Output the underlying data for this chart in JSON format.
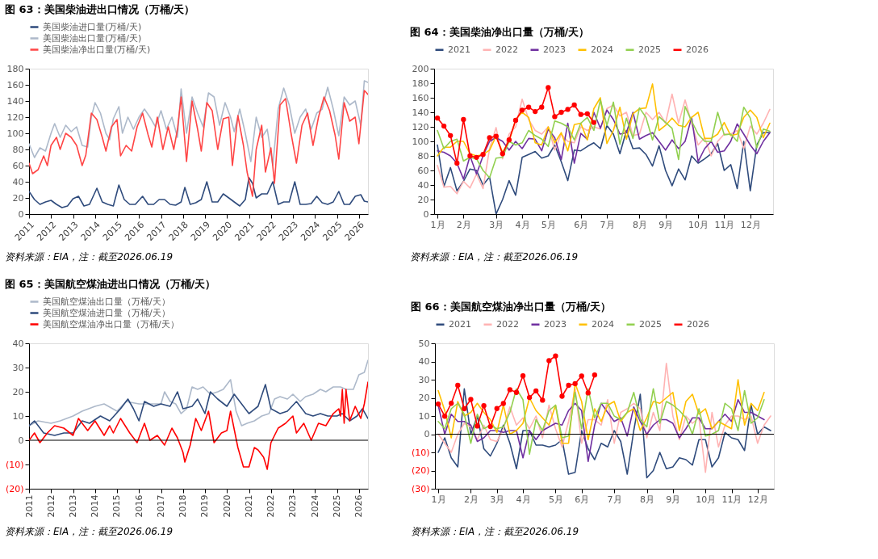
{
  "chart_data": [
    {
      "type": "line",
      "title": "图 63：美国柴油进出口情况（万桶/天）",
      "annotations": [
        "资料来源：EIA，注：截至2026.06.19"
      ],
      "legend": "top left",
      "xlim": [
        "2011-01",
        "2026-06"
      ],
      "xticks": [
        "2011",
        "2012",
        "2013",
        "2014",
        "2015",
        "2016",
        "2017",
        "2018",
        "2019",
        "2020",
        "2021",
        "2022",
        "2023",
        "2024",
        "2025",
        "2026"
      ],
      "ylim": [
        0,
        180
      ],
      "yticks": [
        0,
        20,
        40,
        60,
        80,
        100,
        120,
        140,
        160,
        180
      ],
      "series": [
        {
          "name": "美国柴油进口量(万桶/天)",
          "color": "#2f4b7c",
          "x": [
            "2011-01",
            "2011-04",
            "2011-07",
            "2011-10",
            "2012-01",
            "2012-04",
            "2012-07",
            "2012-10",
            "2013-01",
            "2013-04",
            "2013-07",
            "2013-10",
            "2014-02",
            "2014-05",
            "2014-08",
            "2014-11",
            "2015-02",
            "2015-05",
            "2015-08",
            "2015-11",
            "2016-03",
            "2016-06",
            "2016-09",
            "2016-12",
            "2017-03",
            "2017-06",
            "2017-09",
            "2017-12",
            "2018-02",
            "2018-05",
            "2018-08",
            "2018-11",
            "2019-02",
            "2019-05",
            "2019-08",
            "2019-11",
            "2020-02",
            "2020-05",
            "2020-08",
            "2020-11",
            "2021-01",
            "2021-03",
            "2021-05",
            "2021-08",
            "2021-11",
            "2022-02",
            "2022-05",
            "2022-08",
            "2022-11",
            "2023-02",
            "2023-05",
            "2023-08",
            "2023-11",
            "2024-02",
            "2024-05",
            "2024-08",
            "2024-11",
            "2025-02",
            "2025-05",
            "2025-08",
            "2025-11",
            "2026-02",
            "2026-04",
            "2026-06"
          ],
          "values": [
            28,
            18,
            12,
            15,
            17,
            12,
            8,
            10,
            19,
            22,
            10,
            12,
            32,
            15,
            12,
            10,
            36,
            18,
            12,
            12,
            22,
            12,
            12,
            18,
            18,
            12,
            11,
            15,
            33,
            12,
            14,
            18,
            40,
            15,
            15,
            25,
            20,
            15,
            10,
            18,
            45,
            38,
            20,
            25,
            25,
            40,
            12,
            15,
            15,
            40,
            12,
            12,
            13,
            22,
            14,
            12,
            15,
            28,
            12,
            12,
            22,
            24,
            16,
            15
          ]
        },
        {
          "name": "美国柴油出口量(万桶/天)",
          "color": "#adb9ca",
          "x": [
            "2011-01",
            "2011-04",
            "2011-07",
            "2011-10",
            "2012-01",
            "2012-03",
            "2012-06",
            "2012-09",
            "2012-12",
            "2013-03",
            "2013-06",
            "2013-09",
            "2013-11",
            "2014-01",
            "2014-04",
            "2014-07",
            "2014-09",
            "2014-11",
            "2015-02",
            "2015-04",
            "2015-07",
            "2015-10",
            "2016-01",
            "2016-04",
            "2016-07",
            "2016-10",
            "2017-01",
            "2017-04",
            "2017-07",
            "2017-10",
            "2017-12",
            "2018-03",
            "2018-06",
            "2018-09",
            "2018-12",
            "2019-03",
            "2019-06",
            "2019-09",
            "2019-12",
            "2020-03",
            "2020-05",
            "2020-08",
            "2020-11",
            "2021-02",
            "2021-05",
            "2021-08",
            "2021-11",
            "2022-02",
            "2022-05",
            "2022-08",
            "2022-11",
            "2023-02",
            "2023-05",
            "2023-08",
            "2023-11",
            "2024-02",
            "2024-05",
            "2024-08",
            "2024-11",
            "2025-02",
            "2025-05",
            "2025-08",
            "2025-11",
            "2026-02",
            "2026-04",
            "2026-06"
          ],
          "values": [
            87,
            70,
            82,
            78,
            100,
            112,
            95,
            110,
            102,
            108,
            85,
            83,
            120,
            138,
            125,
            100,
            92,
            118,
            133,
            100,
            120,
            105,
            120,
            130,
            120,
            108,
            128,
            105,
            120,
            95,
            155,
            100,
            145,
            125,
            108,
            150,
            145,
            110,
            138,
            120,
            102,
            130,
            100,
            65,
            120,
            95,
            105,
            60,
            130,
            156,
            135,
            100,
            120,
            130,
            105,
            125,
            130,
            157,
            130,
            97,
            145,
            135,
            140,
            110,
            165,
            163
          ]
        },
        {
          "name": "美国柴油净出口量(万桶/天)",
          "color": "#ff4545",
          "x": [
            "2011-01",
            "2011-03",
            "2011-06",
            "2011-09",
            "2011-11",
            "2012-01",
            "2012-04",
            "2012-06",
            "2012-09",
            "2012-12",
            "2013-03",
            "2013-06",
            "2013-08",
            "2013-11",
            "2014-02",
            "2014-05",
            "2014-07",
            "2014-10",
            "2015-01",
            "2015-03",
            "2015-06",
            "2015-09",
            "2015-12",
            "2016-03",
            "2016-06",
            "2016-08",
            "2016-11",
            "2017-02",
            "2017-05",
            "2017-08",
            "2017-10",
            "2017-12",
            "2018-03",
            "2018-06",
            "2018-09",
            "2018-11",
            "2019-02",
            "2019-05",
            "2019-08",
            "2019-11",
            "2020-02",
            "2020-04",
            "2020-07",
            "2020-10",
            "2020-12",
            "2021-03",
            "2021-05",
            "2021-08",
            "2021-10",
            "2022-01",
            "2022-03",
            "2022-06",
            "2022-09",
            "2022-12",
            "2023-03",
            "2023-06",
            "2023-09",
            "2023-12",
            "2024-03",
            "2024-06",
            "2024-09",
            "2024-12",
            "2025-02",
            "2025-05",
            "2025-08",
            "2025-11",
            "2026-01",
            "2026-04",
            "2026-06"
          ],
          "values": [
            63,
            50,
            55,
            72,
            60,
            85,
            95,
            80,
            100,
            95,
            85,
            60,
            73,
            125,
            117,
            95,
            78,
            108,
            117,
            72,
            85,
            78,
            108,
            125,
            98,
            83,
            120,
            80,
            108,
            80,
            105,
            145,
            65,
            140,
            105,
            78,
            138,
            128,
            80,
            118,
            120,
            60,
            122,
            85,
            52,
            22,
            80,
            110,
            52,
            82,
            38,
            135,
            143,
            100,
            63,
            110,
            125,
            85,
            120,
            145,
            128,
            98,
            68,
            138,
            115,
            120,
            87,
            153,
            148
          ]
        }
      ]
    },
    {
      "type": "line",
      "title": "图 64：美国柴油净出口量（万桶/天）",
      "annotations": [
        "资料来源：EIA，注：截至2026.06.19"
      ],
      "legend": "top",
      "categories": [
        "1月",
        null,
        null,
        null,
        "2月",
        null,
        null,
        null,
        null,
        "3月",
        null,
        null,
        null,
        "4月",
        null,
        null,
        null,
        "5月",
        null,
        null,
        null,
        null,
        "6月",
        null,
        null,
        null,
        "7月",
        null,
        null,
        null,
        null,
        "8月",
        null,
        null,
        null,
        "9月",
        null,
        null,
        null,
        null,
        "10月",
        null,
        null,
        null,
        "11月",
        null,
        null,
        null,
        "12月",
        null,
        null,
        null
      ],
      "ylim": [
        0,
        200
      ],
      "yticks": [
        0,
        20,
        40,
        60,
        80,
        100,
        120,
        140,
        160,
        180,
        200
      ],
      "series": [
        {
          "name": "2021",
          "color": "#2f4b7c",
          "values": [
            95,
            38,
            64,
            32,
            45,
            62,
            60,
            40,
            51,
            0,
            20,
            46,
            26,
            78,
            82,
            86,
            77,
            80,
            95,
            72,
            46,
            88,
            87,
            93,
            98,
            90,
            122,
            110,
            83,
            115,
            90,
            91,
            82,
            66,
            94,
            60,
            39,
            62,
            47,
            80,
            70,
            76,
            83,
            97,
            60,
            68,
            35,
            100,
            32,
            95,
            112,
            112
          ]
        },
        {
          "name": "2022",
          "color": "#ffb3b3",
          "values": [
            67,
            37,
            38,
            28,
            45,
            36,
            55,
            35,
            90,
            119,
            76,
            110,
            120,
            158,
            130,
            115,
            110,
            120,
            88,
            110,
            100,
            98,
            120,
            115,
            120,
            117,
            145,
            150,
            135,
            140,
            108,
            110,
            140,
            130,
            140,
            125,
            165,
            125,
            157,
            125,
            95,
            105,
            80,
            100,
            110,
            110,
            115,
            90,
            121,
            110,
            125,
            144
          ]
        },
        {
          "name": "2023",
          "color": "#7030a0",
          "values": [
            87,
            85,
            80,
            70,
            48,
            80,
            55,
            80,
            100,
            105,
            100,
            88,
            100,
            90,
            104,
            103,
            87,
            117,
            105,
            75,
            125,
            70,
            111,
            103,
            140,
            118,
            143,
            130,
            110,
            112,
            140,
            103,
            108,
            112,
            100,
            88,
            102,
            90,
            100,
            133,
            72,
            90,
            100,
            85,
            87,
            100,
            124,
            110,
            95,
            83,
            100,
            112
          ]
        },
        {
          "name": "2024",
          "color": "#ffc000",
          "values": [
            80,
            92,
            92,
            100,
            100,
            83,
            80,
            82,
            88,
            107,
            85,
            100,
            130,
            140,
            133,
            98,
            95,
            120,
            98,
            112,
            87,
            123,
            125,
            102,
            145,
            160,
            97,
            115,
            147,
            103,
            138,
            145,
            146,
            179,
            115,
            122,
            132,
            122,
            120,
            133,
            140,
            104,
            104,
            110,
            126,
            108,
            110,
            133,
            143,
            133,
            105,
            125
          ]
        },
        {
          "name": "2025",
          "color": "#92d050",
          "values": [
            115,
            90,
            100,
            103,
            73,
            78,
            76,
            60,
            50,
            77,
            78,
            100,
            95,
            98,
            115,
            108,
            103,
            93,
            128,
            125,
            120,
            102,
            125,
            133,
            115,
            157,
            122,
            154,
            96,
            132,
            104,
            146,
            133,
            102,
            134,
            126,
            118,
            75,
            148,
            128,
            110,
            100,
            100,
            140,
            109,
            110,
            100,
            147,
            132,
            91,
            117,
            114
          ]
        },
        {
          "name": "2026",
          "color": "#ff0000",
          "marker": "circle",
          "values": [
            132,
            121,
            108,
            70,
            130,
            80,
            78,
            82,
            105,
            107,
            83,
            102,
            129,
            143,
            147,
            141,
            147,
            174,
            134,
            140,
            144,
            150,
            137,
            138,
            126,
            null,
            null,
            null,
            null,
            null,
            null,
            null,
            null,
            null,
            null,
            null,
            null,
            null,
            null,
            null,
            null,
            null,
            null,
            null,
            null,
            null,
            null,
            null,
            null,
            null,
            null,
            null
          ]
        }
      ]
    },
    {
      "type": "line",
      "title": "图 65：美国航空煤油进出口情况（万桶/天）",
      "annotations": [
        "资料来源：EIA，注：截至2026.06.19"
      ],
      "legend": "top left",
      "xlim": [
        "2011-01",
        "2026-06"
      ],
      "xticks": [
        "2011",
        "2012",
        "2013",
        "2014",
        "2015",
        "2016",
        "2017",
        "2018",
        "2019",
        "2020",
        "2021",
        "2022",
        "2023",
        "2024",
        "2025",
        "2026"
      ],
      "ylim": [
        -20,
        40
      ],
      "yticks": [
        {
          "value": -20,
          "label": "(20)"
        },
        {
          "value": -10,
          "label": "(10)"
        },
        0,
        10,
        20,
        30,
        40
      ],
      "ref_lines": [
        {
          "axis": "y",
          "value": 0,
          "color": "#000000"
        }
      ],
      "series": [
        {
          "name": "美国航空煤油出口量（万桶/天）",
          "color": "#adb9ca",
          "x": [
            "2011-01",
            "2011-06",
            "2012-01",
            "2012-06",
            "2013-01",
            "2013-06",
            "2014-01",
            "2014-06",
            "2015-01",
            "2015-06",
            "2016-01",
            "2016-06",
            "2017-01",
            "2017-03",
            "2017-06",
            "2017-09",
            "2017-12",
            "2018-03",
            "2018-06",
            "2018-09",
            "2018-12",
            "2019-04",
            "2019-08",
            "2019-11",
            "2020-03",
            "2020-06",
            "2020-09",
            "2020-12",
            "2021-04",
            "2021-08",
            "2021-12",
            "2022-03",
            "2022-06",
            "2022-10",
            "2023-01",
            "2023-05",
            "2023-08",
            "2023-12",
            "2024-04",
            "2024-07",
            "2024-11",
            "2025-03",
            "2025-06",
            "2025-10",
            "2026-01",
            "2026-04",
            "2026-06"
          ],
          "values": [
            6,
            8,
            7,
            8,
            10,
            12,
            14,
            15,
            12,
            16,
            15,
            15,
            15,
            20,
            16,
            15,
            11,
            13,
            22,
            21,
            22,
            19,
            20,
            21,
            25,
            12,
            6,
            7,
            8,
            10,
            11,
            17,
            18,
            17,
            19,
            16,
            18,
            19,
            21,
            20,
            22,
            22,
            21,
            21,
            27,
            28,
            33
          ]
        },
        {
          "name": "美国航空煤油进口量（万桶/天）",
          "color": "#2f4b7c",
          "x": [
            "2011-01",
            "2011-04",
            "2011-09",
            "2012-03",
            "2012-08",
            "2013-01",
            "2013-06",
            "2013-10",
            "2014-04",
            "2014-09",
            "2015-03",
            "2015-07",
            "2015-10",
            "2016-01",
            "2016-04",
            "2016-09",
            "2017-01",
            "2017-06",
            "2017-10",
            "2018-01",
            "2018-06",
            "2018-09",
            "2019-01",
            "2019-04",
            "2019-08",
            "2020-01",
            "2020-05",
            "2020-08",
            "2021-01",
            "2021-06",
            "2021-10",
            "2022-01",
            "2022-06",
            "2022-10",
            "2023-03",
            "2023-08",
            "2023-12",
            "2024-04",
            "2024-08",
            "2025-01",
            "2025-04",
            "2025-08",
            "2025-12",
            "2026-03",
            "2026-06"
          ],
          "values": [
            6,
            8,
            3,
            2,
            3,
            3,
            8,
            7,
            10,
            8,
            13,
            17,
            13,
            8,
            16,
            14,
            15,
            14,
            20,
            13,
            14,
            17,
            11,
            20,
            17,
            14,
            19,
            16,
            11,
            14,
            23,
            13,
            11,
            12,
            16,
            11,
            10,
            11,
            10,
            10,
            11,
            8,
            10,
            13,
            9
          ]
        },
        {
          "name": "美国航空煤油净出口量（万桶/天）",
          "color": "#ff0000",
          "x": [
            "2011-01",
            "2011-04",
            "2011-07",
            "2011-11",
            "2012-03",
            "2012-08",
            "2013-01",
            "2013-04",
            "2013-09",
            "2014-01",
            "2014-06",
            "2014-09",
            "2014-11",
            "2015-03",
            "2015-08",
            "2015-12",
            "2016-04",
            "2016-07",
            "2016-11",
            "2017-03",
            "2017-07",
            "2017-10",
            "2018-01",
            "2018-02",
            "2018-05",
            "2018-08",
            "2018-11",
            "2019-03",
            "2019-06",
            "2019-10",
            "2020-01",
            "2020-03",
            "2020-07",
            "2020-10",
            "2021-01",
            "2021-04",
            "2021-06",
            "2021-09",
            "2021-11",
            "2022-01",
            "2022-05",
            "2022-09",
            "2023-01",
            "2023-03",
            "2023-07",
            "2023-11",
            "2024-03",
            "2024-07",
            "2024-11",
            "2025-02",
            "2025-03",
            "2025-04",
            "2025-05",
            "2025-06",
            "2025-08",
            "2025-11",
            "2026-02",
            "2026-04",
            "2026-06"
          ],
          "values": [
            0,
            3,
            -1,
            3,
            6,
            5,
            2,
            9,
            4,
            8,
            2,
            6,
            3,
            9,
            3,
            -1,
            7,
            0,
            2,
            -2,
            5,
            1,
            -5,
            -9,
            -2,
            9,
            4,
            12,
            -1,
            3,
            4,
            12,
            -3,
            -11,
            -11,
            -3,
            -4,
            -7,
            -12,
            -1,
            5,
            7,
            10,
            3,
            7,
            0,
            7,
            6,
            11,
            13,
            10,
            21,
            7,
            21,
            8,
            14,
            9,
            15,
            24
          ]
        }
      ]
    },
    {
      "type": "line",
      "title": "图 66：美国航空煤油净出口量（万桶/天）",
      "annotations": [
        "资料来源：EIA，注：截至2026.06.19"
      ],
      "legend": "top",
      "categories": [
        "1月",
        null,
        null,
        null,
        null,
        "2月",
        null,
        null,
        null,
        "3月",
        null,
        null,
        null,
        "4月",
        null,
        null,
        null,
        null,
        "5月",
        null,
        null,
        null,
        "6月",
        null,
        null,
        null,
        null,
        "7月",
        null,
        null,
        null,
        null,
        "8月",
        null,
        null,
        null,
        "9月",
        null,
        null,
        null,
        null,
        "10月",
        null,
        null,
        null,
        "11月",
        null,
        null,
        null,
        "12月",
        null,
        null
      ],
      "ylim": [
        -30,
        50
      ],
      "yticks": [
        {
          "value": -30,
          "label": "(30)"
        },
        {
          "value": -20,
          "label": "(20)"
        },
        {
          "value": -10,
          "label": "(10)"
        },
        0,
        10,
        20,
        30,
        40,
        50
      ],
      "ref_lines": [
        {
          "axis": "y",
          "value": 0,
          "color": "#000000"
        }
      ],
      "series": [
        {
          "name": "2021",
          "color": "#2f4b7c",
          "values": [
            -10,
            -2,
            -13,
            -18,
            25,
            0,
            10,
            -8,
            -12,
            -5,
            5,
            -5,
            -19,
            2,
            2,
            -6,
            -6,
            -7,
            -6,
            -3,
            -22,
            -21,
            2,
            -8,
            -14,
            -5,
            -7,
            2,
            -4,
            -22,
            2,
            22,
            -24,
            -20,
            -10,
            -19,
            -18,
            -13,
            -14,
            -17,
            -3,
            -3,
            -18,
            -13,
            1,
            -2,
            -3,
            -9,
            16,
            0,
            4,
            2
          ]
        },
        {
          "name": "2022",
          "color": "#ffb3b3",
          "values": [
            0,
            -5,
            -10,
            0,
            6,
            4,
            -3,
            5,
            -3,
            -4,
            3,
            15,
            5,
            9,
            3,
            10,
            -2,
            16,
            3,
            -7,
            7,
            25,
            -5,
            8,
            8,
            5,
            19,
            -5,
            12,
            14,
            17,
            14,
            -2,
            12,
            2,
            39,
            10,
            -3,
            10,
            6,
            9,
            -21,
            12,
            -7,
            5,
            10,
            10,
            8,
            10,
            -5,
            5,
            10
          ]
        },
        {
          "name": "2023",
          "color": "#7030a0",
          "values": [
            16,
            0,
            11,
            7,
            7,
            5,
            -4,
            -2,
            2,
            2,
            1,
            2,
            2,
            -13,
            2,
            -3,
            2,
            4,
            6,
            5,
            13,
            17,
            13,
            -15,
            5,
            17,
            12,
            7,
            9,
            -1,
            15,
            7,
            0,
            5,
            8,
            8,
            6,
            -2,
            3,
            9,
            9,
            3,
            3,
            7,
            11,
            7,
            19,
            12,
            12,
            10,
            8,
            null
          ]
        },
        {
          "name": "2024",
          "color": "#ffc000",
          "values": [
            24,
            13,
            -2,
            18,
            10,
            12,
            17,
            12,
            8,
            1,
            16,
            0,
            2,
            6,
            20,
            13,
            9,
            5,
            16,
            -5,
            -5,
            28,
            18,
            -3,
            14,
            7,
            16,
            18,
            7,
            12,
            14,
            2,
            9,
            18,
            17,
            20,
            23,
            2,
            18,
            22,
            11,
            14,
            3,
            7,
            5,
            3,
            30,
            5,
            17,
            13,
            23,
            null
          ]
        },
        {
          "name": "2025",
          "color": "#92d050",
          "values": [
            7,
            3,
            14,
            17,
            11,
            -5,
            11,
            3,
            5,
            3,
            4,
            12,
            25,
            19,
            -11,
            8,
            2,
            13,
            16,
            -2,
            -1,
            23,
            3,
            25,
            9,
            17,
            17,
            10,
            8,
            12,
            23,
            8,
            4,
            25,
            6,
            18,
            16,
            13,
            9,
            0,
            14,
            -1,
            0,
            2,
            17,
            14,
            2,
            24,
            6,
            9,
            19,
            null
          ]
        },
        {
          "name": "2026",
          "color": "#ff0000",
          "marker": "circle",
          "values": [
            16.6,
            9.9,
            17,
            26.9,
            14,
            19.1,
            4.5,
            15.7,
            4.2,
            14.1,
            16.9,
            24.5,
            23,
            32.1,
            20.2,
            23.8,
            18.7,
            40.5,
            43,
            20.9,
            26.9,
            27.8,
            32,
            22.7,
            32.6,
            null,
            null,
            null,
            null,
            null,
            null,
            null,
            null,
            null,
            null,
            null,
            null,
            null,
            null,
            null,
            null,
            null,
            null,
            null,
            null,
            null,
            null,
            null,
            null,
            null,
            null,
            null
          ]
        }
      ]
    }
  ]
}
